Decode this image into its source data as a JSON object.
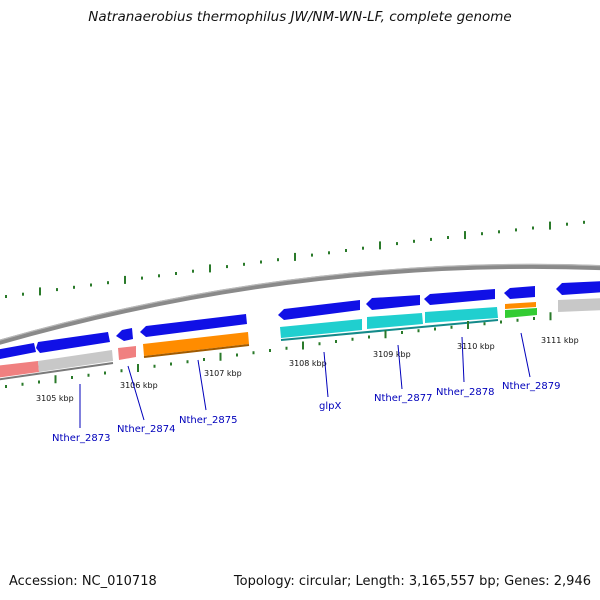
{
  "title": "Natranaerobius thermophilus JW/NM-WN-LF, complete genome",
  "footer": {
    "accession": "Accession: NC_010718",
    "topology": "Topology: circular; Length: 3,165,557 bp; Genes: 2,946"
  },
  "scale_labels": [
    "3105 kbp",
    "3106 kbp",
    "3107 kbp",
    "3108 kbp",
    "3109 kbp",
    "3110 kbp",
    "3111 kbp"
  ],
  "gene_labels": [
    "Nther_2873",
    "Nther_2874",
    "Nther_2875",
    "glpX",
    "Nther_2877",
    "Nther_2878",
    "Nther_2879"
  ],
  "colors": {
    "backbone": "#8a8a8a",
    "cds_track": "#1010e6",
    "rna_pink": "#f08080",
    "rna_gray": "#c8c8c8",
    "rna_orange": "#ff8c00",
    "rna_cyan": "#20cfcf",
    "rna_green": "#33cc33",
    "gc_ticks": "#2a7a2a",
    "label": "#0000bb"
  }
}
